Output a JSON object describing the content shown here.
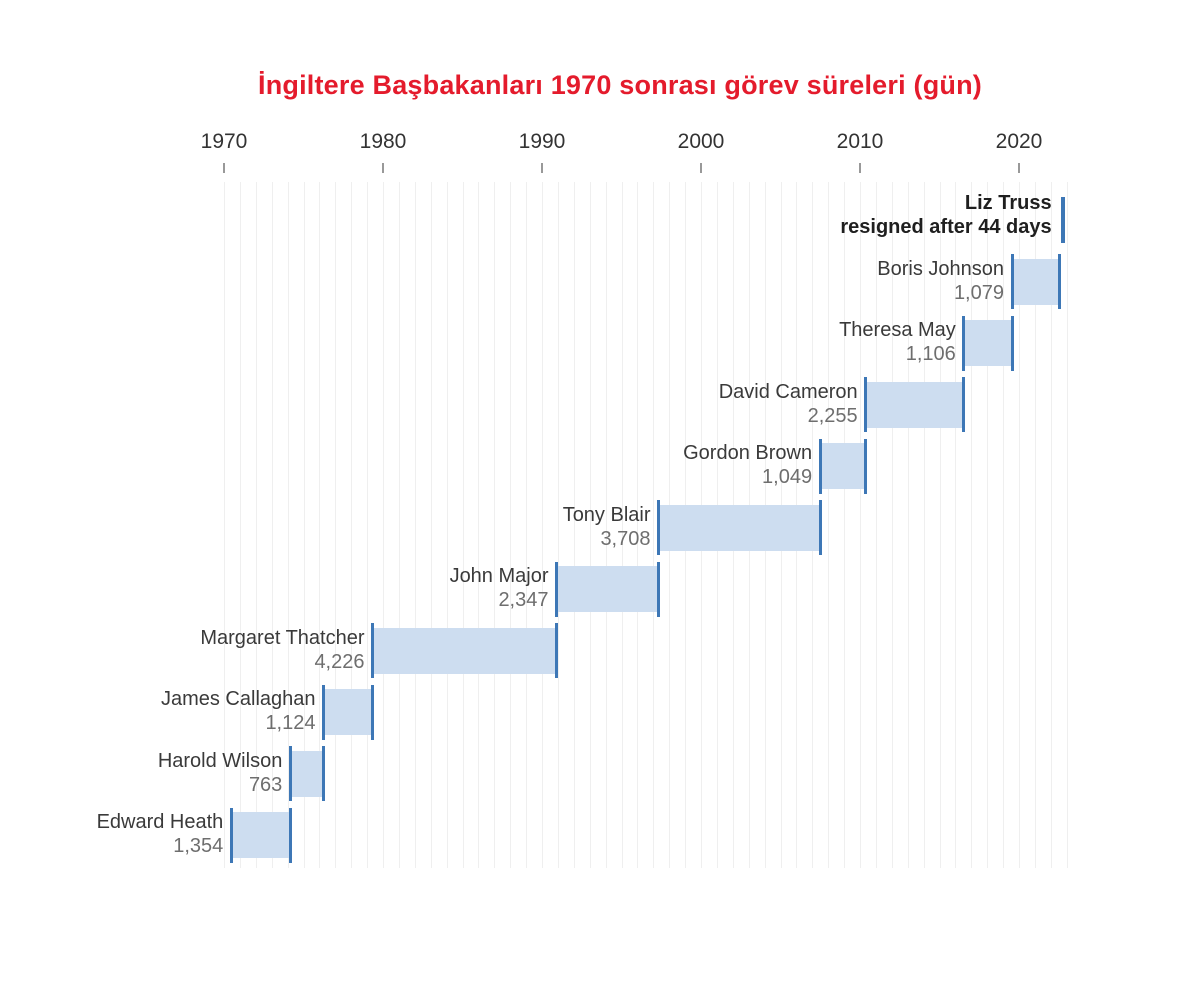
{
  "title": "İngiltere Başbakanları 1970 sonrası görev süreleri (gün)",
  "colors": {
    "title": "#e41b2c",
    "bar_fill": "#cdddf0",
    "bar_cap": "#3d77b6",
    "grid": "#efefef",
    "name_text": "#3a3a3a",
    "value_text": "#6e6e6e",
    "highlight_text": "#1f1f1f",
    "axis_label": "#333333",
    "tick": "#999999"
  },
  "axis": {
    "tick_years": [
      "1970",
      "1980",
      "1990",
      "2000",
      "2010",
      "2020"
    ],
    "grid_year_start": 1970,
    "grid_year_end": 2023
  },
  "chart_data": {
    "type": "bar",
    "subtype": "gantt-timeline",
    "title": "İngiltere Başbakanları 1970 sonrası görev süreleri (gün)",
    "unit": "days",
    "xlabel": "",
    "ylabel": "",
    "x_axis_years": [
      1970,
      1980,
      1990,
      2000,
      2010,
      2020
    ],
    "x_range": [
      1970,
      2023
    ],
    "grid": "vertical-yearly",
    "series": [
      {
        "name": "Liz Truss",
        "days": 44,
        "value_label": "resigned after 44 days",
        "start_year": 2022.68,
        "highlight": true
      },
      {
        "name": "Boris Johnson",
        "days": 1079,
        "value_label": "1,079",
        "start_year": 2019.56,
        "highlight": false
      },
      {
        "name": "Theresa May",
        "days": 1106,
        "value_label": "1,106",
        "start_year": 2016.53,
        "highlight": false
      },
      {
        "name": "David Cameron",
        "days": 2255,
        "value_label": "2,255",
        "start_year": 2010.36,
        "highlight": false
      },
      {
        "name": "Gordon Brown",
        "days": 1049,
        "value_label": "1,049",
        "start_year": 2007.49,
        "highlight": false
      },
      {
        "name": "Tony Blair",
        "days": 3708,
        "value_label": "3,708",
        "start_year": 1997.33,
        "highlight": false
      },
      {
        "name": "John Major",
        "days": 2347,
        "value_label": "2,347",
        "start_year": 1990.91,
        "highlight": false
      },
      {
        "name": "Margaret Thatcher",
        "days": 4226,
        "value_label": "4,226",
        "start_year": 1979.34,
        "highlight": false
      },
      {
        "name": "James Callaghan",
        "days": 1124,
        "value_label": "1,124",
        "start_year": 1976.26,
        "highlight": false
      },
      {
        "name": "Harold Wilson",
        "days": 763,
        "value_label": "763",
        "start_year": 1974.17,
        "highlight": false
      },
      {
        "name": "Edward Heath",
        "days": 1354,
        "value_label": "1,354",
        "start_year": 1970.46,
        "highlight": false
      }
    ]
  }
}
